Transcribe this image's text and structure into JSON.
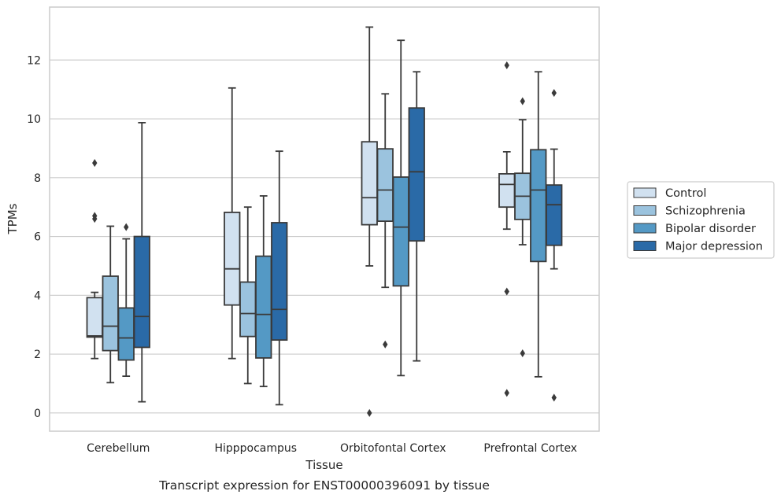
{
  "caption": "Transcript expression for ENST00000396091 by tissue",
  "chart_data": {
    "type": "box",
    "xlabel": "Tissue",
    "ylabel": "TPMs",
    "ylim": [
      -0.62,
      13.8
    ],
    "yticks": [
      0,
      2,
      4,
      6,
      8,
      10,
      12
    ],
    "grid": "horizontal",
    "legend_position": "right",
    "categories": [
      "Cerebellum",
      "Hipppocampus",
      "Orbitofontal Cortex",
      "Prefrontal Cortex"
    ],
    "series": [
      {
        "name": "Control",
        "color": "#d1e1f0",
        "boxes": [
          {
            "whislo": 1.85,
            "q1": 2.58,
            "med": 2.62,
            "q3": 3.92,
            "whishi": 4.1,
            "fliers": [
              8.5,
              6.7,
              6.6
            ]
          },
          {
            "whislo": 1.85,
            "q1": 3.67,
            "med": 4.9,
            "q3": 6.82,
            "whishi": 11.05,
            "fliers": []
          },
          {
            "whislo": 5.0,
            "q1": 6.4,
            "med": 7.32,
            "q3": 9.22,
            "whishi": 13.12,
            "fliers": [
              0.0
            ]
          },
          {
            "whislo": 6.25,
            "q1": 7.0,
            "med": 7.77,
            "q3": 8.13,
            "whishi": 8.88,
            "fliers": [
              11.82,
              4.13,
              0.68
            ]
          }
        ]
      },
      {
        "name": "Schizophrenia",
        "color": "#9bc3de",
        "boxes": [
          {
            "whislo": 1.03,
            "q1": 2.12,
            "med": 2.95,
            "q3": 4.65,
            "whishi": 6.35,
            "fliers": []
          },
          {
            "whislo": 1.0,
            "q1": 2.6,
            "med": 3.38,
            "q3": 4.45,
            "whishi": 7.0,
            "fliers": []
          },
          {
            "whislo": 4.27,
            "q1": 6.52,
            "med": 7.58,
            "q3": 8.98,
            "whishi": 10.85,
            "fliers": [
              2.33
            ]
          },
          {
            "whislo": 5.72,
            "q1": 6.58,
            "med": 7.37,
            "q3": 8.15,
            "whishi": 9.97,
            "fliers": [
              10.6,
              2.03
            ]
          }
        ]
      },
      {
        "name": "Bipolar disorder",
        "color": "#5499c5",
        "boxes": [
          {
            "whislo": 1.25,
            "q1": 1.8,
            "med": 2.55,
            "q3": 3.57,
            "whishi": 5.92,
            "fliers": [
              6.32
            ]
          },
          {
            "whislo": 0.9,
            "q1": 1.87,
            "med": 3.35,
            "q3": 5.33,
            "whishi": 7.38,
            "fliers": []
          },
          {
            "whislo": 1.27,
            "q1": 4.32,
            "med": 6.32,
            "q3": 8.02,
            "whishi": 12.67,
            "fliers": []
          },
          {
            "whislo": 1.23,
            "q1": 5.15,
            "med": 7.58,
            "q3": 8.95,
            "whishi": 11.6,
            "fliers": []
          }
        ]
      },
      {
        "name": "Major depression",
        "color": "#2a6aa7",
        "boxes": [
          {
            "whislo": 0.38,
            "q1": 2.23,
            "med": 3.28,
            "q3": 6.0,
            "whishi": 9.87,
            "fliers": []
          },
          {
            "whislo": 0.28,
            "q1": 2.48,
            "med": 3.52,
            "q3": 6.47,
            "whishi": 8.9,
            "fliers": []
          },
          {
            "whislo": 1.77,
            "q1": 5.85,
            "med": 8.2,
            "q3": 10.37,
            "whishi": 11.6,
            "fliers": []
          },
          {
            "whislo": 4.9,
            "q1": 5.7,
            "med": 7.08,
            "q3": 7.75,
            "whishi": 8.97,
            "fliers": [
              10.88,
              0.52
            ]
          }
        ]
      }
    ]
  }
}
